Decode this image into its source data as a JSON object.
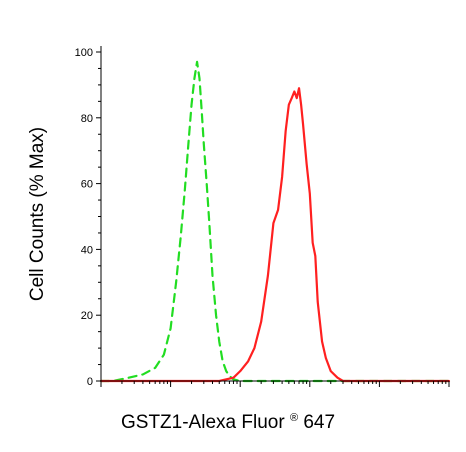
{
  "chart_data": {
    "type": "line",
    "xlabel_main": "GSTZ1-Alexa Fluor",
    "xlabel_sup": "®",
    "xlabel_tail": " 647",
    "ylabel": "Cell Counts (% Max)",
    "x_scale": "log",
    "xlim": [
      1,
      100000
    ],
    "ylim": [
      0,
      100
    ],
    "y_ticks": [
      0,
      20,
      40,
      60,
      80,
      100
    ],
    "grid": false,
    "series": [
      {
        "color": "#22dd22",
        "dash": "dashed",
        "x": [
          1,
          1.5,
          2.5,
          4,
          6,
          8,
          10,
          12,
          14,
          16,
          18,
          20,
          22,
          24,
          26,
          28,
          30,
          33,
          36,
          40,
          45,
          50,
          56,
          63,
          70,
          80,
          100,
          150,
          300,
          100000
        ],
        "y": [
          0,
          0,
          1,
          2,
          4,
          8,
          16,
          30,
          44,
          58,
          72,
          84,
          92,
          97,
          92,
          82,
          72,
          60,
          48,
          32,
          20,
          12,
          6,
          3,
          1.5,
          0.5,
          0,
          0,
          0,
          0
        ]
      },
      {
        "color": "#ff2020",
        "dash": "solid",
        "x": [
          1,
          10,
          50,
          80,
          100,
          130,
          160,
          200,
          250,
          300,
          350,
          400,
          450,
          500,
          550,
          600,
          650,
          700,
          750,
          800,
          900,
          1000,
          1100,
          1200,
          1300,
          1500,
          1700,
          2000,
          2500,
          3000,
          4000,
          100000
        ],
        "y": [
          0,
          0,
          0,
          1,
          3,
          6,
          10,
          18,
          32,
          48,
          52,
          62,
          76,
          84,
          86,
          88,
          86,
          89,
          84,
          78,
          66,
          57,
          42,
          38,
          24,
          12,
          7,
          3,
          1,
          0,
          0,
          0
        ]
      }
    ]
  }
}
